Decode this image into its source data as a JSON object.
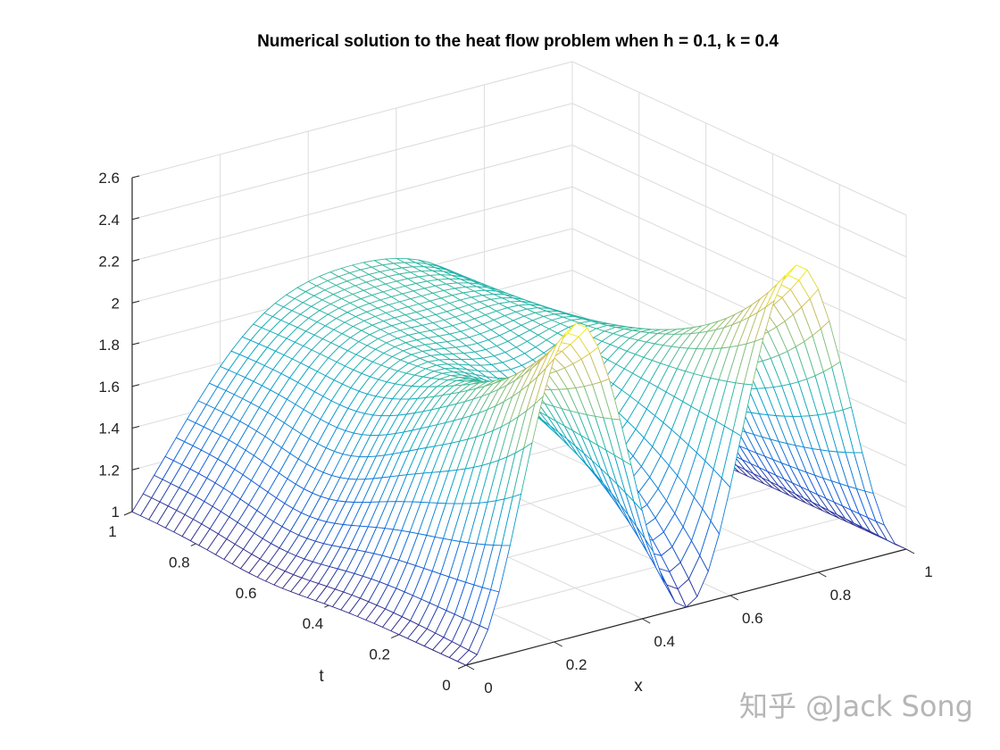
{
  "chart_data": {
    "type": "surface-mesh",
    "title": "Numerical solution to the heat flow problem when h = 0.1, k = 0.4",
    "xlabel": "x",
    "ylabel": "t",
    "zlabel": "",
    "xlim": [
      0,
      1
    ],
    "ylim": [
      0,
      1
    ],
    "zlim": [
      1,
      2.6
    ],
    "x_ticks": [
      "0",
      "0.2",
      "0.4",
      "0.6",
      "0.8",
      "1"
    ],
    "t_ticks": [
      "0",
      "0.2",
      "0.4",
      "0.6",
      "0.8",
      "1"
    ],
    "z_ticks": [
      "1",
      "1.2",
      "1.4",
      "1.6",
      "1.8",
      "2",
      "2.2",
      "2.4",
      "2.6"
    ],
    "grid": true,
    "colormap": "parula",
    "grid_resolution": 40,
    "surface_description_values": {
      "boundary_value_at_x0_and_x1": 1,
      "initial_peaks_x": [
        0.25,
        0.75
      ],
      "initial_peak_value": 2.5,
      "initial_min_x": 0.5,
      "final_center_value_t1": 1.9
    }
  },
  "watermark": "知乎 @Jack Song"
}
